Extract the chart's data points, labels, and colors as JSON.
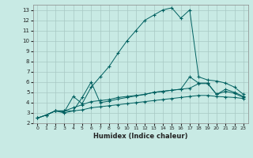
{
  "xlabel": "Humidex (Indice chaleur)",
  "xlim": [
    -0.5,
    23.5
  ],
  "ylim": [
    2,
    13.5
  ],
  "xticks": [
    0,
    1,
    2,
    3,
    4,
    5,
    6,
    7,
    8,
    9,
    10,
    11,
    12,
    13,
    14,
    15,
    16,
    17,
    18,
    19,
    20,
    21,
    22,
    23
  ],
  "yticks": [
    2,
    3,
    4,
    5,
    6,
    7,
    8,
    9,
    10,
    11,
    12,
    13
  ],
  "bg_color": "#c8eae4",
  "grid_color": "#a8c8c4",
  "line_color": "#006060",
  "line1_x": [
    0,
    1,
    2,
    3,
    4,
    5,
    6,
    7,
    8,
    9,
    10,
    11,
    12,
    13,
    14,
    15,
    16,
    17,
    18,
    19,
    20,
    21,
    22,
    23
  ],
  "line1_y": [
    2.5,
    2.8,
    3.2,
    3.2,
    3.2,
    3.3,
    3.5,
    3.6,
    3.7,
    3.8,
    3.9,
    4.0,
    4.1,
    4.2,
    4.3,
    4.4,
    4.5,
    4.6,
    4.7,
    4.7,
    4.6,
    4.55,
    4.5,
    4.4
  ],
  "line2_x": [
    0,
    1,
    2,
    3,
    4,
    5,
    6,
    7,
    8,
    9,
    10,
    11,
    12,
    13,
    14,
    15,
    16,
    17,
    18,
    19,
    20,
    21,
    22,
    23
  ],
  "line2_y": [
    2.5,
    2.8,
    3.2,
    3.2,
    3.5,
    3.8,
    4.1,
    4.2,
    4.3,
    4.5,
    4.6,
    4.7,
    4.8,
    5.0,
    5.1,
    5.2,
    5.3,
    5.4,
    5.85,
    5.85,
    4.8,
    5.1,
    4.9,
    4.5
  ],
  "line3_x": [
    0,
    1,
    2,
    3,
    4,
    5,
    6,
    7,
    8,
    9,
    10,
    11,
    12,
    13,
    14,
    15,
    16,
    17,
    18,
    19,
    20,
    21,
    22,
    23
  ],
  "line3_y": [
    2.5,
    2.8,
    3.2,
    3.0,
    3.2,
    4.5,
    6.0,
    4.0,
    4.15,
    4.35,
    4.5,
    4.65,
    4.8,
    5.0,
    5.1,
    5.2,
    5.3,
    6.5,
    5.9,
    5.9,
    4.8,
    5.3,
    5.0,
    4.6
  ],
  "line4_x": [
    1,
    2,
    3,
    4,
    5,
    6,
    7,
    8,
    9,
    10,
    11,
    12,
    13,
    14,
    15,
    16,
    17,
    18,
    19,
    20,
    21,
    22,
    23
  ],
  "line4_y": [
    2.8,
    3.2,
    3.1,
    4.6,
    3.9,
    5.5,
    6.5,
    7.5,
    8.8,
    10.0,
    11.0,
    12.0,
    12.5,
    13.0,
    13.2,
    12.2,
    13.0,
    6.5,
    6.2,
    6.1,
    5.9,
    5.5,
    4.8
  ]
}
